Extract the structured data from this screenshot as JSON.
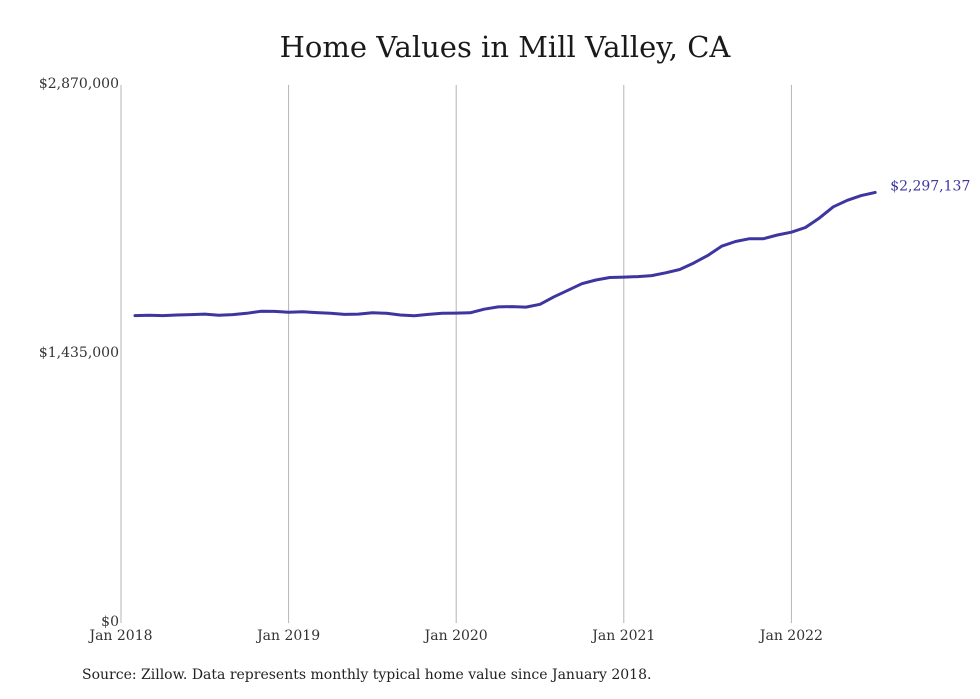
{
  "chart_data": {
    "type": "line",
    "title": "Home Values in Mill Valley, CA",
    "source": "Source: Zillow. Data represents monthly typical home value since January 2018.",
    "ylim": [
      0,
      2870000
    ],
    "yticks": [
      {
        "value": 0,
        "label": "$0"
      },
      {
        "value": 1435000,
        "label": "$1,435,000"
      },
      {
        "value": 2870000,
        "label": "$2,870,000"
      }
    ],
    "xticks": [
      "Jan 2018",
      "Jan 2019",
      "Jan 2020",
      "Jan 2021",
      "Jan 2022"
    ],
    "grid": {
      "vertical": true,
      "horizontal": false
    },
    "line_color": "#3d35a0",
    "end_label": "$2,297,137",
    "series": [
      {
        "x": [
          "2018-02",
          "2018-03",
          "2018-04",
          "2018-05",
          "2018-06",
          "2018-07",
          "2018-08",
          "2018-09",
          "2018-10",
          "2018-11",
          "2018-12",
          "2019-01",
          "2019-02",
          "2019-03",
          "2019-04",
          "2019-05",
          "2019-06",
          "2019-07",
          "2019-08",
          "2019-09",
          "2019-10",
          "2019-11",
          "2019-12",
          "2020-01",
          "2020-02",
          "2020-03",
          "2020-04",
          "2020-05",
          "2020-06",
          "2020-07",
          "2020-08",
          "2020-09",
          "2020-10",
          "2020-11",
          "2020-12",
          "2021-01",
          "2021-02",
          "2021-03",
          "2021-04",
          "2021-05",
          "2021-06",
          "2021-07",
          "2021-08",
          "2021-09",
          "2021-10",
          "2021-11",
          "2021-12",
          "2022-01",
          "2022-02",
          "2022-03",
          "2022-04",
          "2022-05",
          "2022-06",
          "2022-07"
        ],
        "values": [
          1640000,
          1642000,
          1640000,
          1643000,
          1645000,
          1648000,
          1642000,
          1645000,
          1652000,
          1663000,
          1662000,
          1658000,
          1660000,
          1656000,
          1652000,
          1646000,
          1648000,
          1655000,
          1652000,
          1643000,
          1639000,
          1646000,
          1652000,
          1653000,
          1655000,
          1674000,
          1686000,
          1688000,
          1685000,
          1700000,
          1740000,
          1775000,
          1810000,
          1830000,
          1843000,
          1845000,
          1848000,
          1853000,
          1868000,
          1886000,
          1920000,
          1960000,
          2010000,
          2035000,
          2050000,
          2050000,
          2070000,
          2085000,
          2110000,
          2160000,
          2220000,
          2255000,
          2280000,
          2297137
        ]
      }
    ]
  }
}
